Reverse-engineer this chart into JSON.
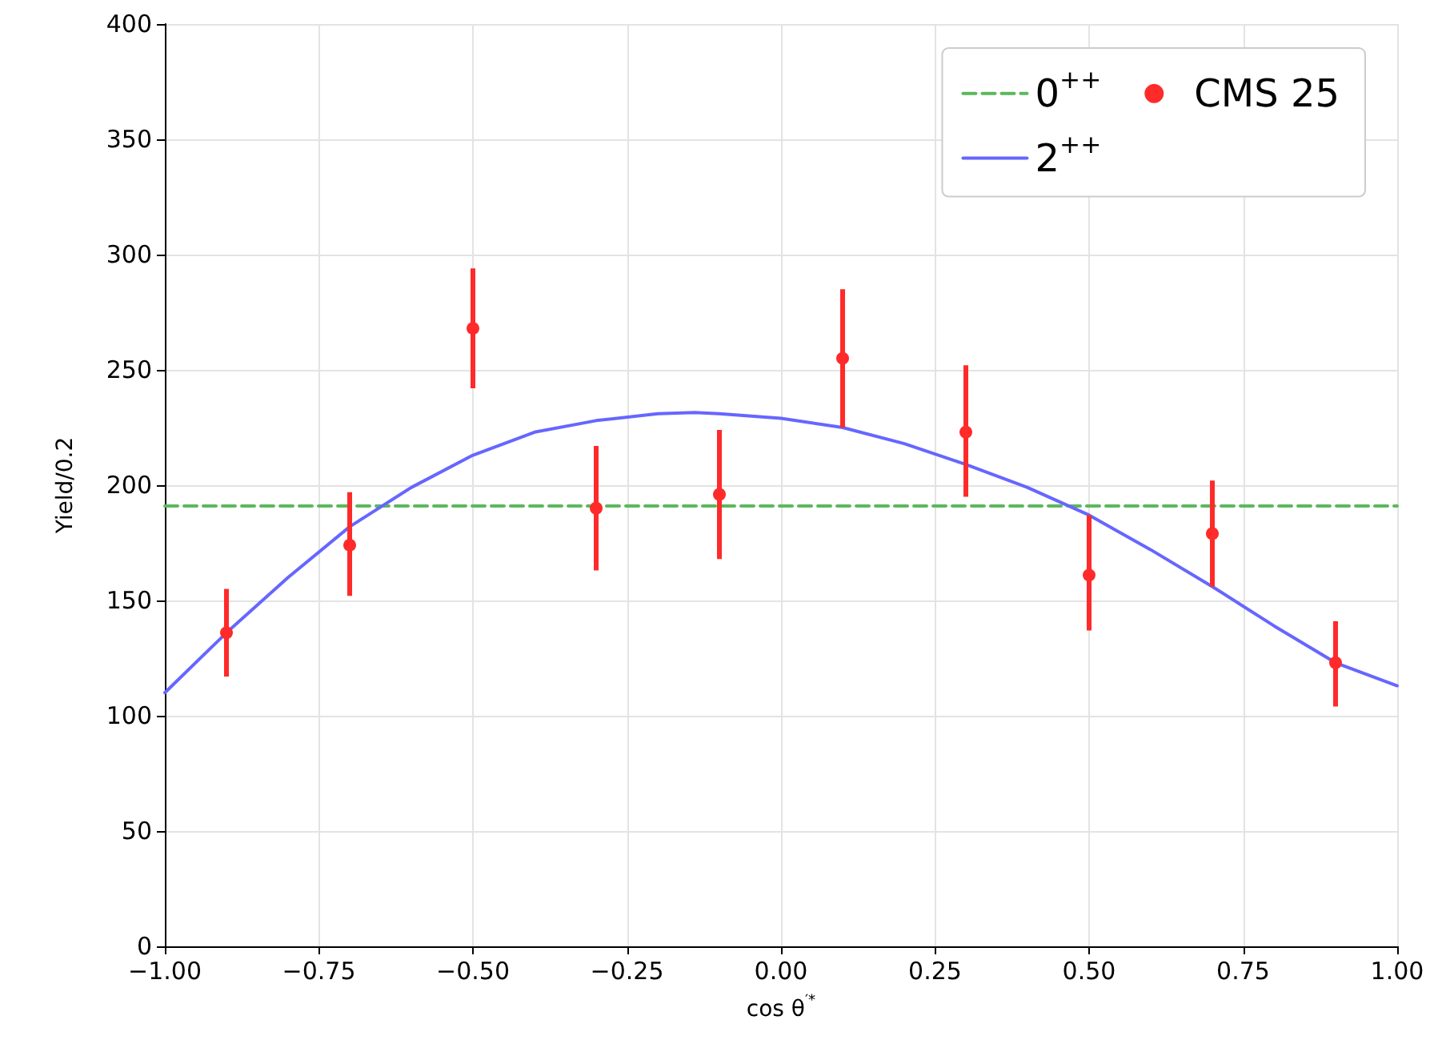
{
  "chart_data": {
    "type": "scatter",
    "xlabel": "cos θ$^{′*}$",
    "ylabel": "Yield/0.2",
    "xlim": [
      -1,
      1
    ],
    "xticks": [
      {
        "value": -1,
        "label": "−1.00"
      },
      {
        "value": -0.75,
        "label": "−0.75"
      },
      {
        "value": -0.5,
        "label": "−0.50"
      },
      {
        "value": -0.25,
        "label": "−0.25"
      },
      {
        "value": 0,
        "label": "0.00"
      },
      {
        "value": 0.25,
        "label": "0.25"
      },
      {
        "value": 0.5,
        "label": "0.50"
      },
      {
        "value": 0.75,
        "label": "0.75"
      },
      {
        "value": 1,
        "label": "1.00"
      }
    ],
    "ylim": [
      0,
      400
    ],
    "yticks": [
      0,
      50,
      100,
      150,
      200,
      250,
      300,
      350,
      400
    ],
    "grid": true,
    "legend": "top right",
    "series": [
      {
        "name": "0$^{++}$",
        "type": "line",
        "line_style": "dashed",
        "marker": "none",
        "color": "#5cb85c",
        "x": [
          -1,
          1
        ],
        "values": [
          191,
          191
        ]
      },
      {
        "name": "2$^{++}$",
        "type": "line",
        "line_style": "solid",
        "marker": "none",
        "color": "#6666ff",
        "x": [
          -1,
          -0.9,
          -0.8,
          -0.7,
          -0.6,
          -0.5,
          -0.4,
          -0.3,
          -0.2,
          -0.14,
          -0.1,
          0,
          0.1,
          0.2,
          0.3,
          0.4,
          0.5,
          0.6,
          0.7,
          0.8,
          0.9,
          1
        ],
        "values": [
          110,
          136,
          160,
          182,
          199,
          213,
          223,
          228,
          231,
          231.5,
          231,
          229,
          225,
          218,
          209,
          199,
          187,
          172,
          156,
          139,
          123,
          113
        ]
      },
      {
        "name": "CMS 25",
        "marker": "circle",
        "color": "#ff2a2a",
        "x": [
          -0.9,
          -0.7,
          -0.5,
          -0.3,
          -0.1,
          0.1,
          0.3,
          0.5,
          0.7,
          0.9
        ],
        "values": [
          136,
          174,
          268,
          190,
          196,
          255,
          223,
          161,
          179,
          123
        ],
        "errors": [
          [
            117,
            155
          ],
          [
            152,
            197
          ],
          [
            242,
            294
          ],
          [
            163,
            217
          ],
          [
            168,
            224
          ],
          [
            225,
            285
          ],
          [
            195,
            252
          ],
          [
            137,
            187
          ],
          [
            156,
            202
          ],
          [
            104,
            141
          ]
        ]
      }
    ]
  }
}
